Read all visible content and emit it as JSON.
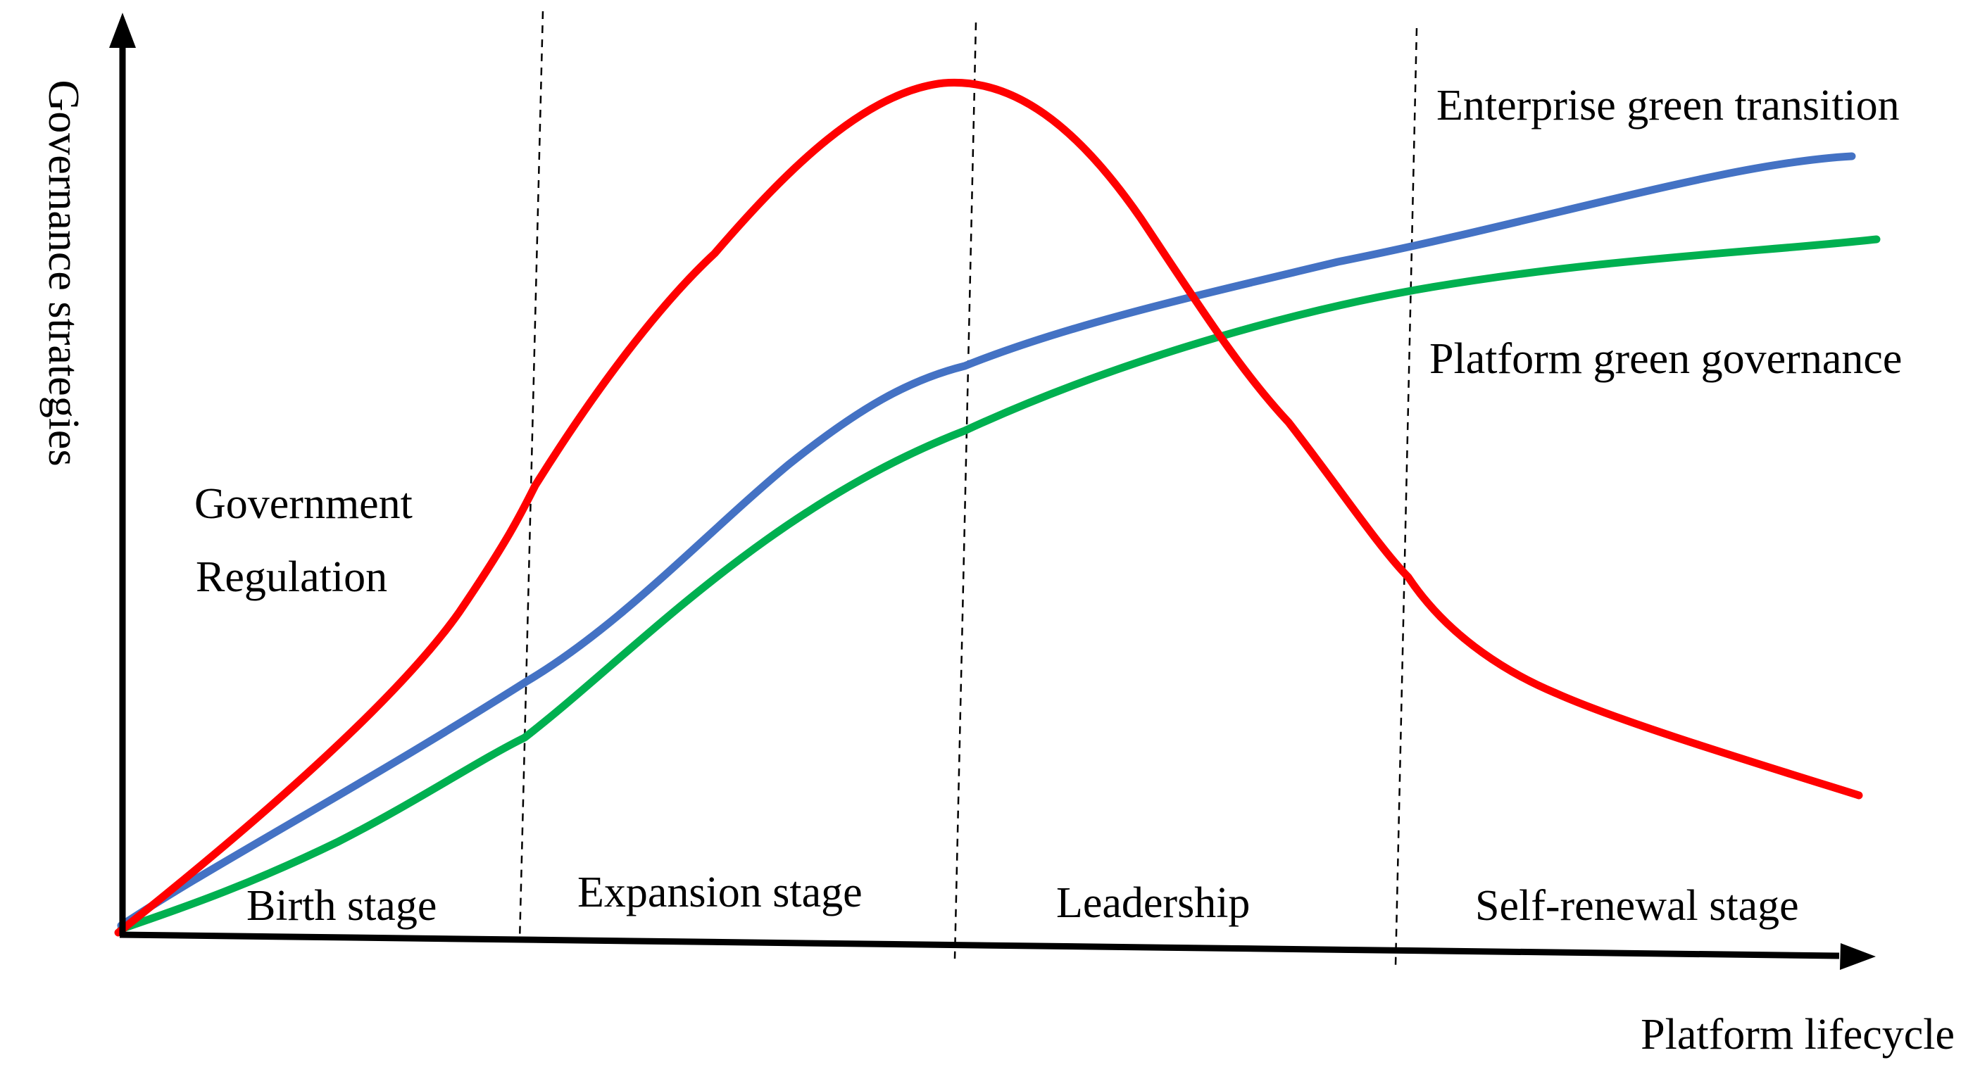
{
  "axes": {
    "y_label": "Governance strategies",
    "x_label": "Platform lifecycle"
  },
  "stages": [
    "Birth stage",
    "Expansion stage",
    "Leadership",
    "Self-renewal stage"
  ],
  "curves": [
    {
      "label": "Government Regulation",
      "label_lines": [
        "Government",
        "Regulation"
      ],
      "color": "#ff0000"
    },
    {
      "label": "Enterprise green transition",
      "color": "#4472c4"
    },
    {
      "label": "Platform green governance",
      "color": "#00b050"
    }
  ],
  "colors": {
    "axis": "#000000",
    "divider": "#000000",
    "background": "#ffffff"
  }
}
